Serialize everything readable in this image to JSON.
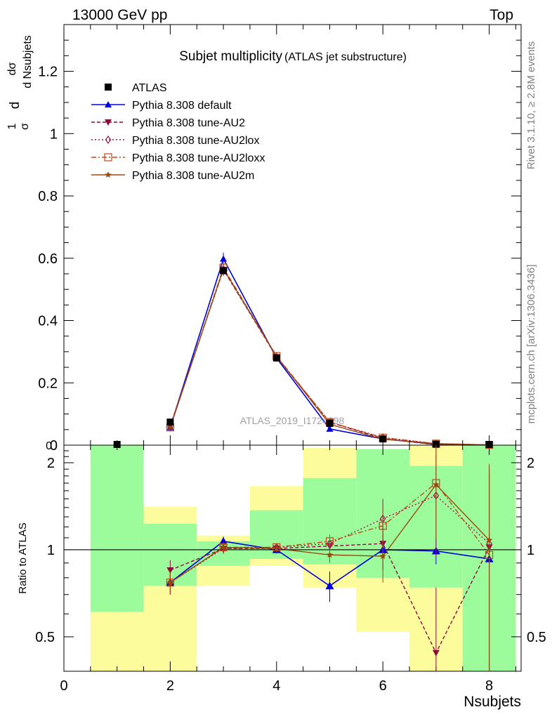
{
  "header": {
    "left": "13000 GeV pp",
    "right": "Top"
  },
  "side_text": {
    "rivet": "Rivet 3.1.10, ≥ 2.8M events",
    "mcplots": "mcplots.cern.ch [arXiv:1306.3436]"
  },
  "watermark": "ATLAS_2019_I1724098",
  "chart_data": [
    {
      "type": "line",
      "panel": "main",
      "title": "Subjet multiplicity",
      "subtitle": "(ATLAS jet substructure)",
      "xlabel": "",
      "ylabel_parts": [
        "d",
        "1",
        "σ",
        "dσ",
        "d Nsubjets"
      ],
      "xlim": [
        0,
        8.6
      ],
      "ylim": [
        0,
        1.35
      ],
      "y_ticks": [
        0,
        0.2,
        0.4,
        0.6,
        0.8,
        1,
        1.2
      ],
      "y_tick_labels": [
        "0",
        "0.2",
        "0.4",
        "0.6",
        "0.8",
        "1",
        "1.2"
      ],
      "legend_position": "top-left",
      "data": {
        "name": "ATLAS",
        "color": "#000000",
        "x": [
          1,
          2,
          3,
          4,
          5,
          6,
          7,
          8
        ],
        "y": [
          0.001,
          0.074,
          0.56,
          0.28,
          0.07,
          0.02,
          0.003,
          0.0008
        ]
      },
      "series": [
        {
          "name": "Pythia 8.308 default",
          "color": "#0000dd",
          "marker": "triangle-up",
          "dash": "solid",
          "x": [
            2,
            3,
            4,
            5,
            6,
            7,
            8
          ],
          "y": [
            0.057,
            0.598,
            0.28,
            0.052,
            0.02,
            0.003,
            0.0007
          ],
          "err": [
            0.004,
            0.02,
            0.012,
            0.004,
            0.002,
            0.001,
            0.0005
          ]
        },
        {
          "name": "Pythia 8.308 tune-AU2",
          "color": "#8b0a3c",
          "marker": "triangle-down",
          "dash": "dashed",
          "x": [
            2,
            3,
            4,
            5,
            6,
            7,
            8
          ],
          "y": [
            0.062,
            0.563,
            0.283,
            0.074,
            0.021,
            0.0013,
            0.0006
          ],
          "err": [
            0.004,
            0.02,
            0.012,
            0.004,
            0.002,
            0.001,
            0.0005
          ]
        },
        {
          "name": "Pythia 8.308 tune-AU2lox",
          "color": "#a0154c",
          "marker": "diamond-open",
          "dash": "dotted",
          "x": [
            2,
            3,
            4,
            5,
            6,
            7,
            8
          ],
          "y": [
            0.057,
            0.565,
            0.284,
            0.073,
            0.025,
            0.0046,
            0.0007
          ],
          "err": [
            0.004,
            0.02,
            0.012,
            0.004,
            0.002,
            0.001,
            0.0005
          ]
        },
        {
          "name": "Pythia 8.308 tune-AU2loxx",
          "color": "#c0481a",
          "marker": "square-open",
          "dash": "dashdot",
          "x": [
            2,
            3,
            4,
            5,
            6,
            7,
            8
          ],
          "y": [
            0.057,
            0.57,
            0.286,
            0.074,
            0.024,
            0.005,
            0.0008
          ],
          "err": [
            0.004,
            0.02,
            0.012,
            0.004,
            0.002,
            0.001,
            0.0005
          ]
        },
        {
          "name": "Pythia 8.308 tune-AU2m",
          "color": "#9a4a10",
          "marker": "star",
          "dash": "solid",
          "x": [
            2,
            3,
            4,
            5,
            6,
            7,
            8
          ],
          "y": [
            0.057,
            0.566,
            0.285,
            0.067,
            0.019,
            0.005,
            0.0009
          ],
          "err": [
            0.004,
            0.02,
            0.012,
            0.004,
            0.002,
            0.001,
            0.0005
          ]
        }
      ]
    },
    {
      "type": "line",
      "panel": "ratio",
      "xlabel": "Nsubjets",
      "ylabel": "Ratio to ATLAS",
      "xlim": [
        0,
        8.6
      ],
      "ylim": [
        0.38,
        2.3
      ],
      "x_ticks": [
        0,
        2,
        4,
        6,
        8
      ],
      "x_tick_labels": [
        "0",
        "2",
        "4",
        "6",
        "8"
      ],
      "y_ticks": [
        0.5,
        1,
        2
      ],
      "y_tick_labels": [
        "0.5",
        "1",
        "2"
      ],
      "reference": 1,
      "bands": {
        "colors": {
          "inner": "#9cfc9c",
          "outer": "#fcfc9c"
        },
        "bins": [
          {
            "x": [
              0.5,
              1.5
            ],
            "outer": [
              0.38,
              2.3
            ],
            "inner": [
              0.61,
              2.3
            ]
          },
          {
            "x": [
              1.5,
              2.5
            ],
            "outer": [
              0.37,
              1.41
            ],
            "inner": [
              0.75,
              1.23
            ]
          },
          {
            "x": [
              2.5,
              3.5
            ],
            "outer": [
              0.75,
              1.12
            ],
            "inner": [
              0.88,
              1.07
            ]
          },
          {
            "x": [
              3.5,
              4.5
            ],
            "outer": [
              0.88,
              1.66
            ],
            "inner": [
              0.93,
              1.37
            ]
          },
          {
            "x": [
              4.5,
              5.5
            ],
            "outer": [
              0.74,
              2.25
            ],
            "inner": [
              0.89,
              1.77
            ]
          },
          {
            "x": [
              5.5,
              6.5
            ],
            "outer": [
              0.52,
              2.23
            ],
            "inner": [
              0.8,
              2.23
            ]
          },
          {
            "x": [
              6.5,
              7.5
            ],
            "outer": [
              0.38,
              2.3
            ],
            "inner": [
              0.74,
              1.95
            ]
          },
          {
            "x": [
              7.5,
              8.5
            ],
            "outer": [
              0.38,
              2.3
            ],
            "inner": [
              0.38,
              2.3
            ]
          }
        ]
      },
      "series": [
        {
          "name": "Pythia 8.308 default",
          "x": [
            2,
            3,
            4,
            5,
            6,
            7,
            8
          ],
          "y": [
            0.77,
            1.07,
            1.0,
            0.75,
            1.0,
            0.99,
            0.93
          ],
          "err": [
            0.07,
            0.04,
            0.03,
            0.09,
            0.05,
            0.1,
            0.9
          ]
        },
        {
          "name": "Pythia 8.308 tune-AU2",
          "x": [
            2,
            3,
            4,
            5,
            6,
            7,
            8
          ],
          "y": [
            0.85,
            1.01,
            1.01,
            1.03,
            1.05,
            0.44,
            1.02
          ],
          "err": [
            0.07,
            0.04,
            0.03,
            0.06,
            0.2,
            0.3,
            0.9
          ]
        },
        {
          "name": "Pythia 8.308 tune-AU2lox",
          "x": [
            2,
            3,
            4,
            5,
            6,
            7,
            8
          ],
          "y": [
            0.77,
            1.01,
            1.02,
            1.05,
            1.28,
            1.54,
            1.05
          ],
          "err": [
            0.07,
            0.04,
            0.03,
            0.06,
            0.22,
            0.6,
            0.9
          ]
        },
        {
          "name": "Pythia 8.308 tune-AU2loxx",
          "x": [
            2,
            3,
            4,
            5,
            6,
            7,
            8
          ],
          "y": [
            0.77,
            1.02,
            1.02,
            1.07,
            1.21,
            1.7,
            0.96
          ],
          "err": [
            0.07,
            0.04,
            0.03,
            0.06,
            0.2,
            0.6,
            0.9
          ]
        },
        {
          "name": "Pythia 8.308 tune-AU2m",
          "x": [
            2,
            3,
            4,
            5,
            6,
            7,
            8
          ],
          "y": [
            0.77,
            1.02,
            1.01,
            0.96,
            0.95,
            1.68,
            1.08
          ],
          "err": [
            0.07,
            0.04,
            0.03,
            0.06,
            0.18,
            0.6,
            0.9
          ]
        }
      ]
    }
  ]
}
